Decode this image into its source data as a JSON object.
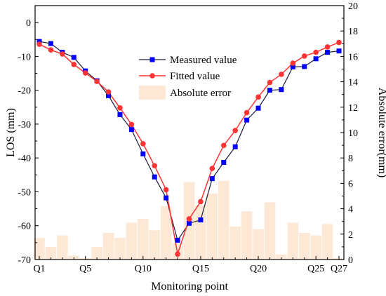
{
  "chart_data": {
    "type": "line",
    "xlabel": "Monitoring point",
    "ylabel": "LOS (mm)",
    "y2label": "Absolute error(mm)",
    "categories": [
      "Q1",
      "Q2",
      "Q3",
      "Q4",
      "Q5",
      "Q6",
      "Q7",
      "Q8",
      "Q9",
      "Q10",
      "Q11",
      "Q12",
      "Q13",
      "Q14",
      "Q15",
      "Q16",
      "Q17",
      "Q18",
      "Q19",
      "Q20",
      "Q21",
      "Q22",
      "Q23",
      "Q24",
      "Q25",
      "Q26",
      "Q27"
    ],
    "x_tick_labels": [
      "Q1",
      "Q5",
      "Q10",
      "Q15",
      "Q20",
      "Q25",
      "Q27"
    ],
    "ylim": [
      -70,
      5
    ],
    "yticks": [
      0,
      -10,
      -20,
      -30,
      -40,
      -50,
      -60,
      -70
    ],
    "y2lim": [
      0,
      20
    ],
    "y2ticks": [
      0,
      2,
      4,
      6,
      8,
      10,
      12,
      14,
      16,
      18,
      20
    ],
    "grid": false,
    "legend_position": "top-center",
    "series": [
      {
        "name": "Measured value",
        "axis": "left",
        "color": "#0000ff",
        "line_color": "#1a1a3a",
        "marker": "square",
        "values": [
          -5.6,
          -6.2,
          -8.8,
          -10.3,
          -14.3,
          -17.2,
          -21.6,
          -27.2,
          -31.6,
          -38.8,
          -45.6,
          -51.8,
          -64.3,
          -59.3,
          -58.3,
          -46.1,
          -41.3,
          -36.7,
          -28.8,
          -25.3,
          -20.0,
          -19.8,
          -13.1,
          -13.0,
          -10.7,
          -8.8,
          -8.4
        ]
      },
      {
        "name": "Fitted value",
        "axis": "left",
        "color": "#ff3333",
        "marker": "circle",
        "values": [
          -6.4,
          -8.1,
          -9.3,
          -12.4,
          -14.9,
          -17.4,
          -20.5,
          -25.2,
          -30.1,
          -35.8,
          -42.3,
          -49.4,
          -68.4,
          -58.0,
          -52.9,
          -43.1,
          -36.3,
          -31.9,
          -26.6,
          -22.0,
          -17.7,
          -15.3,
          -12.0,
          -9.9,
          -8.8,
          -7.2,
          -5.9
        ]
      },
      {
        "name": "Absolute error",
        "axis": "right",
        "type": "bar",
        "color": "#fde8d5",
        "values": [
          1.7,
          1.0,
          1.9,
          0.3,
          0.1,
          1.0,
          2.1,
          1.7,
          2.9,
          3.2,
          2.3,
          4.2,
          1.3,
          6.1,
          4.3,
          5.2,
          6.2,
          2.6,
          3.8,
          2.4,
          4.5,
          0.4,
          2.9,
          2.1,
          1.9,
          2.8,
          0.1
        ]
      }
    ]
  }
}
